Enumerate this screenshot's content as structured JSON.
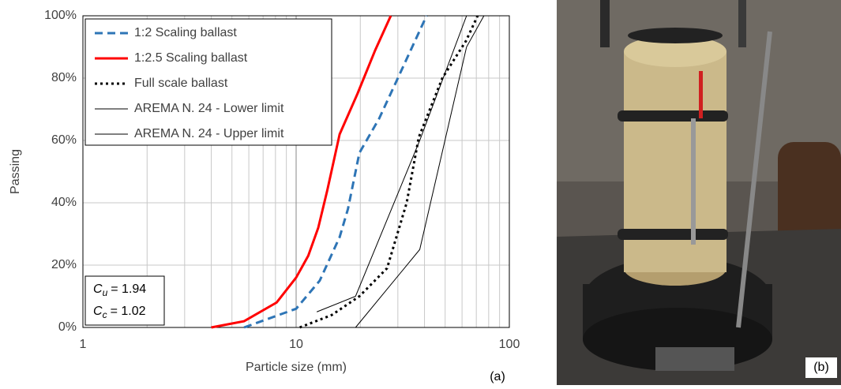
{
  "chart_data": {
    "type": "line",
    "x_label": "Particle size (mm)",
    "y_label": "Passing",
    "panel_label": "(a)",
    "xscale": "log",
    "xlim": [
      1,
      100
    ],
    "xticks": [
      1,
      10,
      100
    ],
    "ylim": [
      0,
      100
    ],
    "yticks": [
      {
        "value": 0,
        "label": "0%"
      },
      {
        "value": 20,
        "label": "20%"
      },
      {
        "value": 40,
        "label": "40%"
      },
      {
        "value": 60,
        "label": "60%"
      },
      {
        "value": 80,
        "label": "80%"
      },
      {
        "value": 100,
        "label": "100%"
      }
    ],
    "grid": true,
    "legend": "upper left",
    "series": [
      {
        "name": "1:2 Scaling ballast",
        "color": "#2e75b6",
        "style": "dashed",
        "width": 3,
        "x": [
          5.7,
          10,
          12.9,
          16,
          17.5,
          19.8,
          24.5,
          30,
          40.9
        ],
        "values": [
          0,
          6,
          15,
          29,
          38,
          56,
          67,
          80,
          100
        ]
      },
      {
        "name": "1:2.5 Scaling ballast",
        "color": "#ff0000",
        "style": "solid",
        "width": 3,
        "x": [
          4,
          5.7,
          8.1,
          10,
          11.4,
          12.7,
          14,
          16,
          19.4,
          23.5,
          27.8
        ],
        "values": [
          0,
          2,
          8,
          16,
          23,
          32,
          44,
          62,
          75,
          89,
          100
        ]
      },
      {
        "name": "Full scale ballast",
        "color": "#000000",
        "style": "dotted",
        "width": 3,
        "x": [
          10.4,
          14.7,
          19.8,
          26.7,
          33,
          37.6,
          48.5,
          62.7,
          71
        ],
        "values": [
          0,
          4,
          10,
          19,
          40,
          61,
          80,
          92,
          100
        ]
      },
      {
        "name": "AREMA N. 24 - Lower limit",
        "color": "#000000",
        "style": "solid",
        "width": 1,
        "x": [
          19,
          38,
          63,
          76
        ],
        "values": [
          0,
          25,
          90,
          100
        ]
      },
      {
        "name": "AREMA N. 24 - Upper limit",
        "color": "#000000",
        "style": "solid",
        "width": 1,
        "x": [
          12.5,
          19,
          38,
          63,
          76
        ],
        "values": [
          5,
          10,
          60,
          100,
          100
        ]
      }
    ],
    "annotations": [
      {
        "symbol": "C",
        "subscript": "u",
        "text": "= 1.94"
      },
      {
        "symbol": "C",
        "subscript": "c",
        "text": "= 1.02"
      }
    ]
  },
  "photo": {
    "label": "(b)"
  }
}
